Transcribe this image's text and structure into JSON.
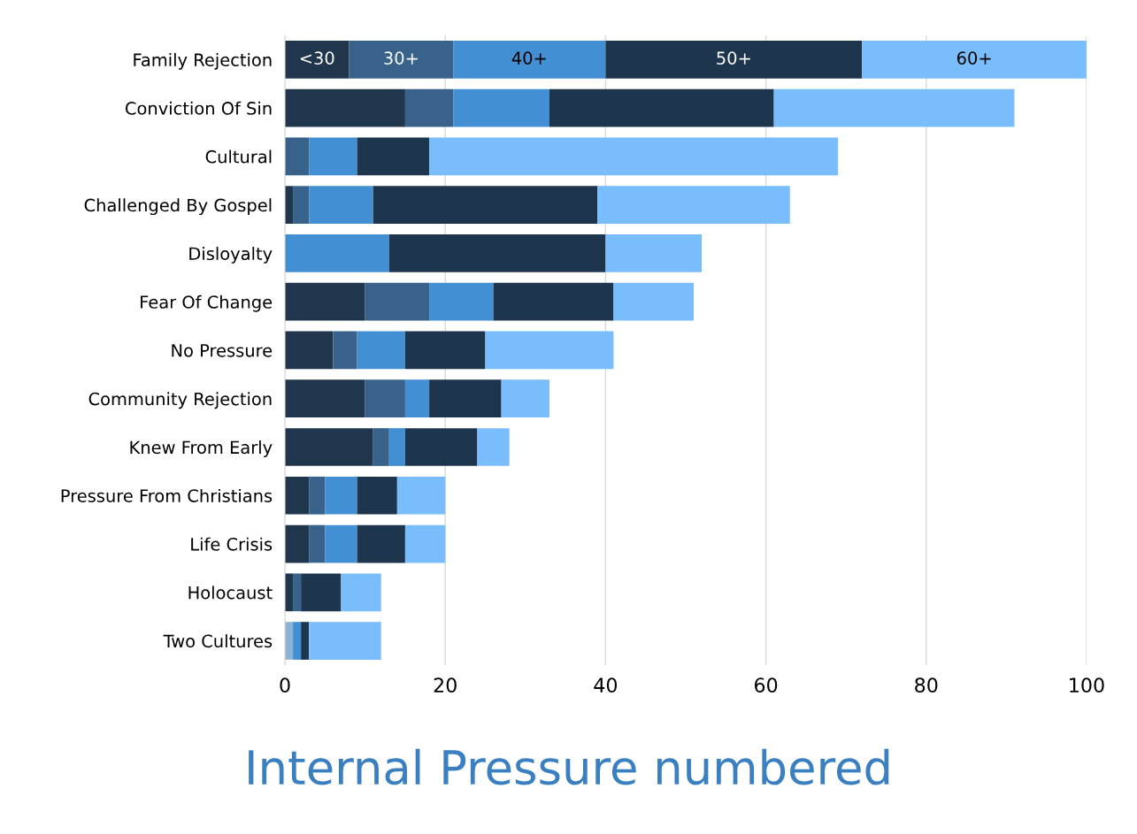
{
  "chart_data": {
    "type": "bar",
    "orientation": "horizontal",
    "stacked": true,
    "title": "Internal Pressure numbered",
    "categories": [
      "Family Rejection",
      "Conviction Of Sin",
      "Cultural",
      "Challenged By Gospel",
      "Disloyalty",
      "Fear Of Change",
      "No Pressure",
      "Community Rejection",
      "Knew From Early",
      "Pressure From Christians",
      "Life Crisis",
      "Holocaust",
      "Two Cultures"
    ],
    "series": [
      {
        "name": "<30",
        "color": "#1f364d",
        "colors": [
          null,
          null,
          null,
          null,
          null,
          null,
          null,
          null,
          null,
          null,
          null,
          null,
          "#8fb3d6"
        ],
        "values": [
          8,
          15,
          0,
          1,
          0,
          10,
          6,
          10,
          11,
          3,
          3,
          1,
          1
        ]
      },
      {
        "name": "30+",
        "color": "#38628a",
        "values": [
          13,
          6,
          3,
          2,
          0,
          8,
          3,
          5,
          2,
          2,
          2,
          1,
          0
        ]
      },
      {
        "name": "40+",
        "color": "#428fd3",
        "values": [
          19,
          12,
          6,
          8,
          13,
          8,
          6,
          3,
          2,
          4,
          4,
          0,
          1
        ]
      },
      {
        "name": "50+",
        "color": "#1e364d",
        "values": [
          32,
          28,
          9,
          28,
          27,
          15,
          10,
          9,
          9,
          5,
          6,
          5,
          1
        ]
      },
      {
        "name": "60+",
        "color": "#79bdfd",
        "values": [
          28,
          30,
          51,
          24,
          12,
          10,
          16,
          6,
          4,
          6,
          5,
          5,
          9
        ]
      }
    ],
    "xlim": [
      0,
      100
    ],
    "xticks": [
      0,
      20,
      40,
      60,
      80,
      100
    ],
    "grid": "x",
    "legend": false
  }
}
